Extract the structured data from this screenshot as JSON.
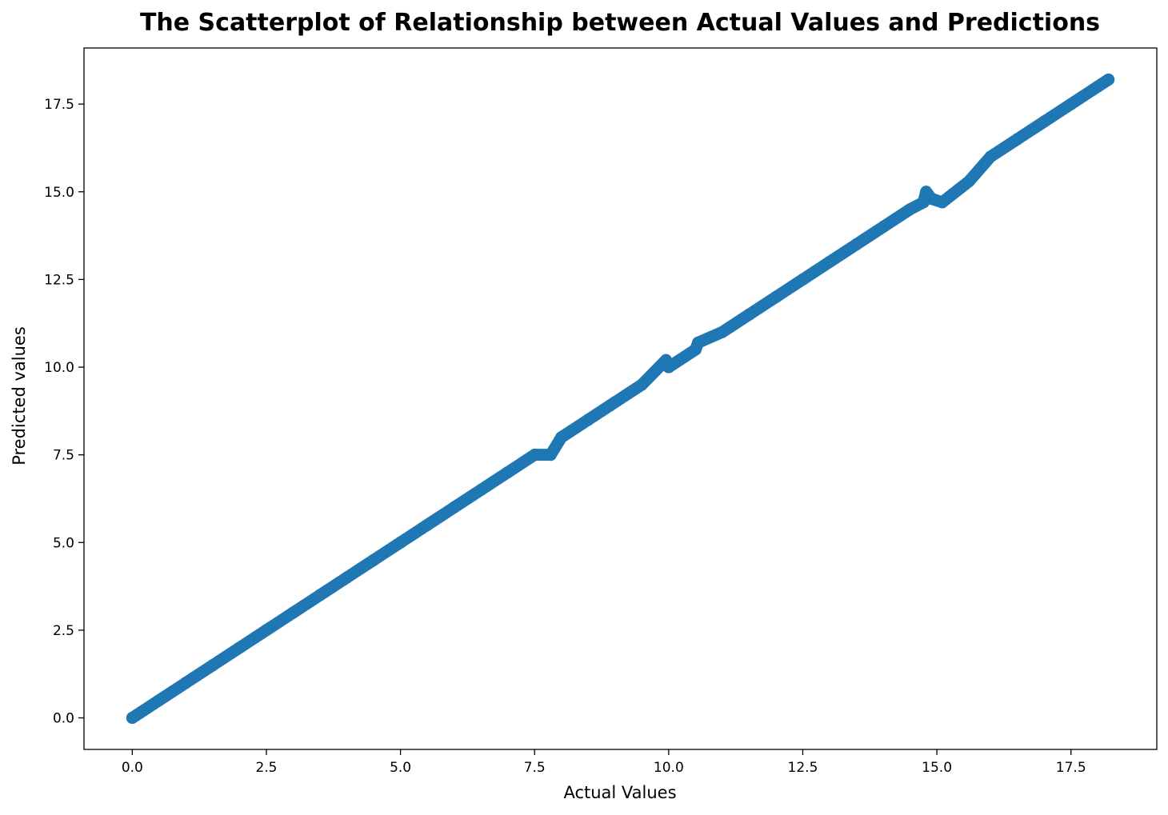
{
  "chart_data": {
    "type": "scatter",
    "title": "The Scatterplot of Relationship between Actual Values and Predictions",
    "xlabel": "Actual Values",
    "ylabel": "Predicted values",
    "xlim": [
      -0.9,
      19.1
    ],
    "ylim": [
      -0.9,
      19.1
    ],
    "xticks": [
      0.0,
      2.5,
      5.0,
      7.5,
      10.0,
      12.5,
      15.0,
      17.5
    ],
    "xtick_labels": [
      "0.0",
      "2.5",
      "5.0",
      "7.5",
      "10.0",
      "12.5",
      "15.0",
      "17.5"
    ],
    "yticks": [
      0.0,
      2.5,
      5.0,
      7.5,
      10.0,
      12.5,
      15.0,
      17.5
    ],
    "ytick_labels": [
      "0.0",
      "2.5",
      "5.0",
      "7.5",
      "10.0",
      "12.5",
      "15.0",
      "17.5"
    ],
    "grid": false,
    "marker_color": "#1f77b4",
    "series": [
      {
        "x": [
          0.0,
          0.5,
          1.0,
          1.5,
          2.0,
          2.5,
          3.0,
          3.5,
          4.0,
          4.5,
          5.0,
          5.5,
          6.0,
          6.5,
          7.0,
          7.5,
          7.8,
          8.0,
          8.5,
          8.9,
          9.0,
          9.5,
          9.95,
          10.0,
          10.5,
          10.55,
          11.0,
          11.5,
          12.0,
          12.5,
          13.0,
          13.5,
          14.0,
          14.5,
          14.75,
          14.8,
          14.9,
          15.1,
          15.6,
          16.0,
          16.5,
          17.0,
          17.5,
          18.0,
          18.2
        ],
        "y": [
          0.0,
          0.5,
          1.0,
          1.5,
          2.0,
          2.5,
          3.0,
          3.5,
          4.0,
          4.5,
          5.0,
          5.5,
          6.0,
          6.5,
          7.0,
          7.5,
          7.5,
          8.0,
          8.5,
          8.9,
          9.0,
          9.5,
          10.2,
          10.0,
          10.5,
          10.7,
          11.0,
          11.5,
          12.0,
          12.5,
          13.0,
          13.5,
          14.0,
          14.5,
          14.7,
          15.0,
          14.8,
          14.7,
          15.3,
          16.0,
          16.5,
          17.0,
          17.5,
          18.0,
          18.2
        ]
      }
    ]
  }
}
